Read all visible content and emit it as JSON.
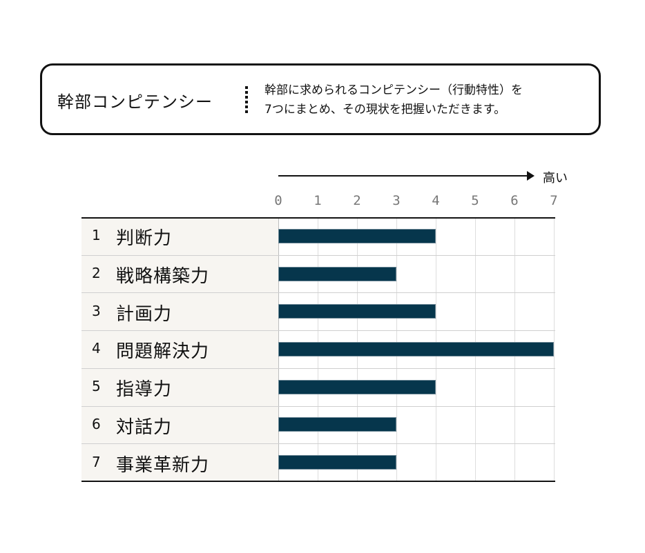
{
  "header": {
    "title": "幹部コンピテンシー",
    "description_line1": "幹部に求められるコンピテンシー（行動特性）を",
    "description_line2": "7つにまとめ、その現状を把握いただきます。"
  },
  "chart_data": {
    "type": "bar",
    "orientation": "horizontal",
    "direction_label": "高い",
    "xlim": [
      0,
      7
    ],
    "ticks": [
      "0",
      "1",
      "2",
      "3",
      "4",
      "5",
      "6",
      "7"
    ],
    "grid": true,
    "categories": [
      {
        "num": "1",
        "label": "判断力"
      },
      {
        "num": "2",
        "label": "戦略構築力"
      },
      {
        "num": "3",
        "label": "計画力"
      },
      {
        "num": "4",
        "label": "問題解決力"
      },
      {
        "num": "5",
        "label": "指導力"
      },
      {
        "num": "6",
        "label": "対話力"
      },
      {
        "num": "7",
        "label": "事業革新力"
      }
    ],
    "values": [
      4,
      3,
      4,
      7,
      4,
      3,
      3
    ],
    "bar_color": "#06364c"
  }
}
